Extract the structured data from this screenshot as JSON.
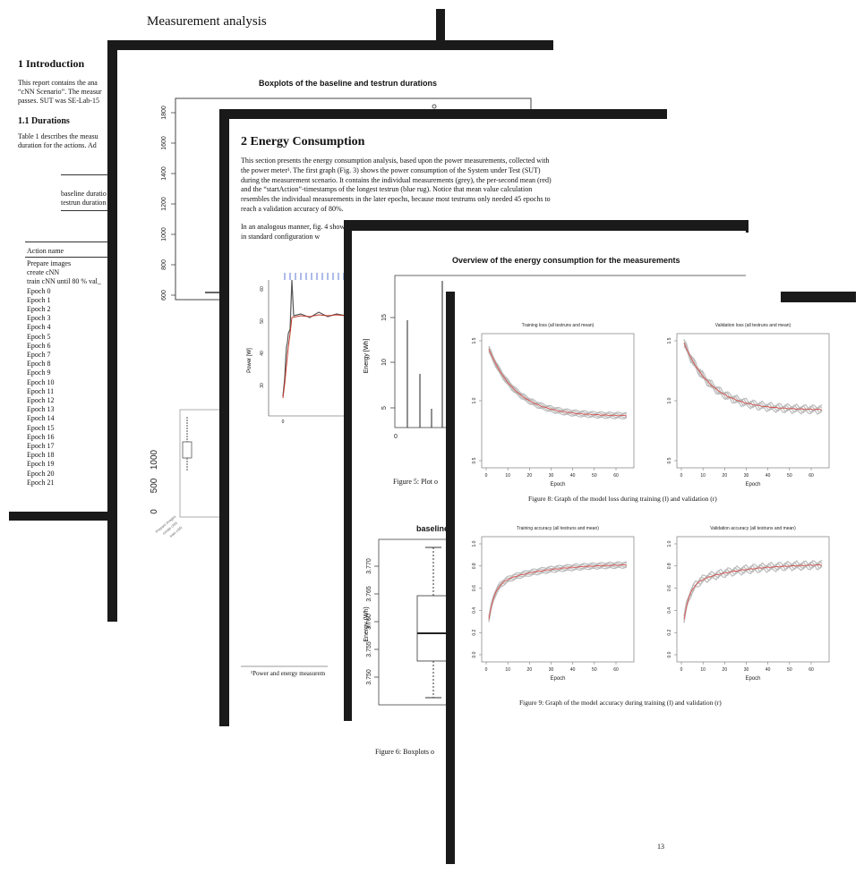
{
  "page1": {
    "header": "Measurement analysis",
    "section_title": "1   Introduction",
    "intro_lines": [
      "This report contains the ana",
      "“cNN Scenario”. The measur",
      "passes. SUT was SE-Lab-15"
    ],
    "subsection_title": "1.1   Durations",
    "durations_lines": [
      "Table 1 describes the measu",
      "duration for the actions. Ad"
    ],
    "table1_rows": [
      "baseline duratio",
      "testrun duration"
    ],
    "action_header": "Action name",
    "actions": [
      "Prepare images",
      "create cNN",
      "train cNN until 80 % val_",
      "Epoch 0",
      "Epoch 1",
      "Epoch 2",
      "Epoch 3",
      "Epoch 4",
      "Epoch 5",
      "Epoch 6",
      "Epoch 7",
      "Epoch 8",
      "Epoch 9",
      "Epoch 10",
      "Epoch 11",
      "Epoch 12",
      "Epoch 13",
      "Epoch 14",
      "Epoch 15",
      "Epoch 16",
      "Epoch 17",
      "Epoch 18",
      "Epoch 19",
      "Epoch 20",
      "Epoch 21"
    ]
  },
  "page2": {
    "chart_title": "Boxplots of the baseline and testrun durations",
    "y_ticks": [
      "1800",
      "1600",
      "1400",
      "1200",
      "1000",
      "800",
      "600"
    ],
    "lower_y_ticks": [
      "1000",
      "500",
      "0"
    ]
  },
  "page3": {
    "section_title": "2   Energy Consumption",
    "para1": [
      "This section presents the energy consumption analysis, based upon the power measurements, collected with",
      "the power meter¹. The first graph (Fig. 3) shows the power consumption of the System under Test (SUT)",
      "during the measurement scenario. It contains the individual measurements (grey), the per-second mean (red)",
      "and the “startAction”-timestamps of the longest testrun (blue rug).  Notice that mean value calculation",
      "resembles the individual measurements in the later epochs, because most testrums only needed 45 epochs to",
      "reach a validation accuracy of 80%."
    ],
    "para2": [
      "In an analogous manner, fig. 4 shows the power consumption of the baseline measurement (SUT running only",
      "in standard configuration w"
    ],
    "power_ylabel": "Power [W]",
    "power_y_ticks": [
      "60",
      "50",
      "40",
      "30"
    ],
    "power_x_tick": "0",
    "footnote": "¹Power and energy measurem"
  },
  "page4": {
    "chart_title": "Overview of the energy consumption for the measurements",
    "ylabel": "Energy [Wh]",
    "y_ticks": [
      "15",
      "10",
      "5"
    ],
    "x_ticks": [
      "0",
      "5"
    ],
    "fig5_caption": "Figure 5:  Plot o",
    "boxplot_title": "baselines",
    "boxplot_ylabel": "Energy (Wh)",
    "boxplot_y_ticks": [
      "3.770",
      "3.765",
      "3.760",
      "3.755",
      "3.750"
    ],
    "fig6_caption": "Figure 6:  Boxplots o"
  },
  "page5": {
    "plots": [
      {
        "title": "Training loss (all testruns and mean)",
        "xlabel": "Epoch",
        "y_ticks": [
          "1.5",
          "1.0",
          "0.5"
        ],
        "x_ticks": [
          "0",
          "10",
          "20",
          "30",
          "40",
          "50",
          "60"
        ]
      },
      {
        "title": "Validation loss (all testruns and mean)",
        "xlabel": "Epoch",
        "y_ticks": [
          "1.5",
          "1.0",
          "0.5"
        ],
        "x_ticks": [
          "0",
          "10",
          "20",
          "30",
          "40",
          "50",
          "60"
        ]
      },
      {
        "title": "Training accuracy (all testruns and mean)",
        "xlabel": "Epoch",
        "y_ticks": [
          "1.0",
          "0.8",
          "0.6",
          "0.4",
          "0.2",
          "0.0"
        ],
        "x_ticks": [
          "0",
          "10",
          "20",
          "30",
          "40",
          "50",
          "60"
        ]
      },
      {
        "title": "Validation accuracy (all testruns and mean)",
        "xlabel": "Epoch",
        "y_ticks": [
          "1.0",
          "0.8",
          "0.6",
          "0.4",
          "0.2",
          "0.0"
        ],
        "x_ticks": [
          "0",
          "10",
          "20",
          "30",
          "40",
          "50",
          "60"
        ]
      }
    ],
    "fig8_caption": "Figure 8:  Graph of the model loss during training (l) and validation (r)",
    "fig9_caption": "Figure 9:  Graph of the model accuracy during training (l) and validation (r)",
    "page_number": "13"
  }
}
